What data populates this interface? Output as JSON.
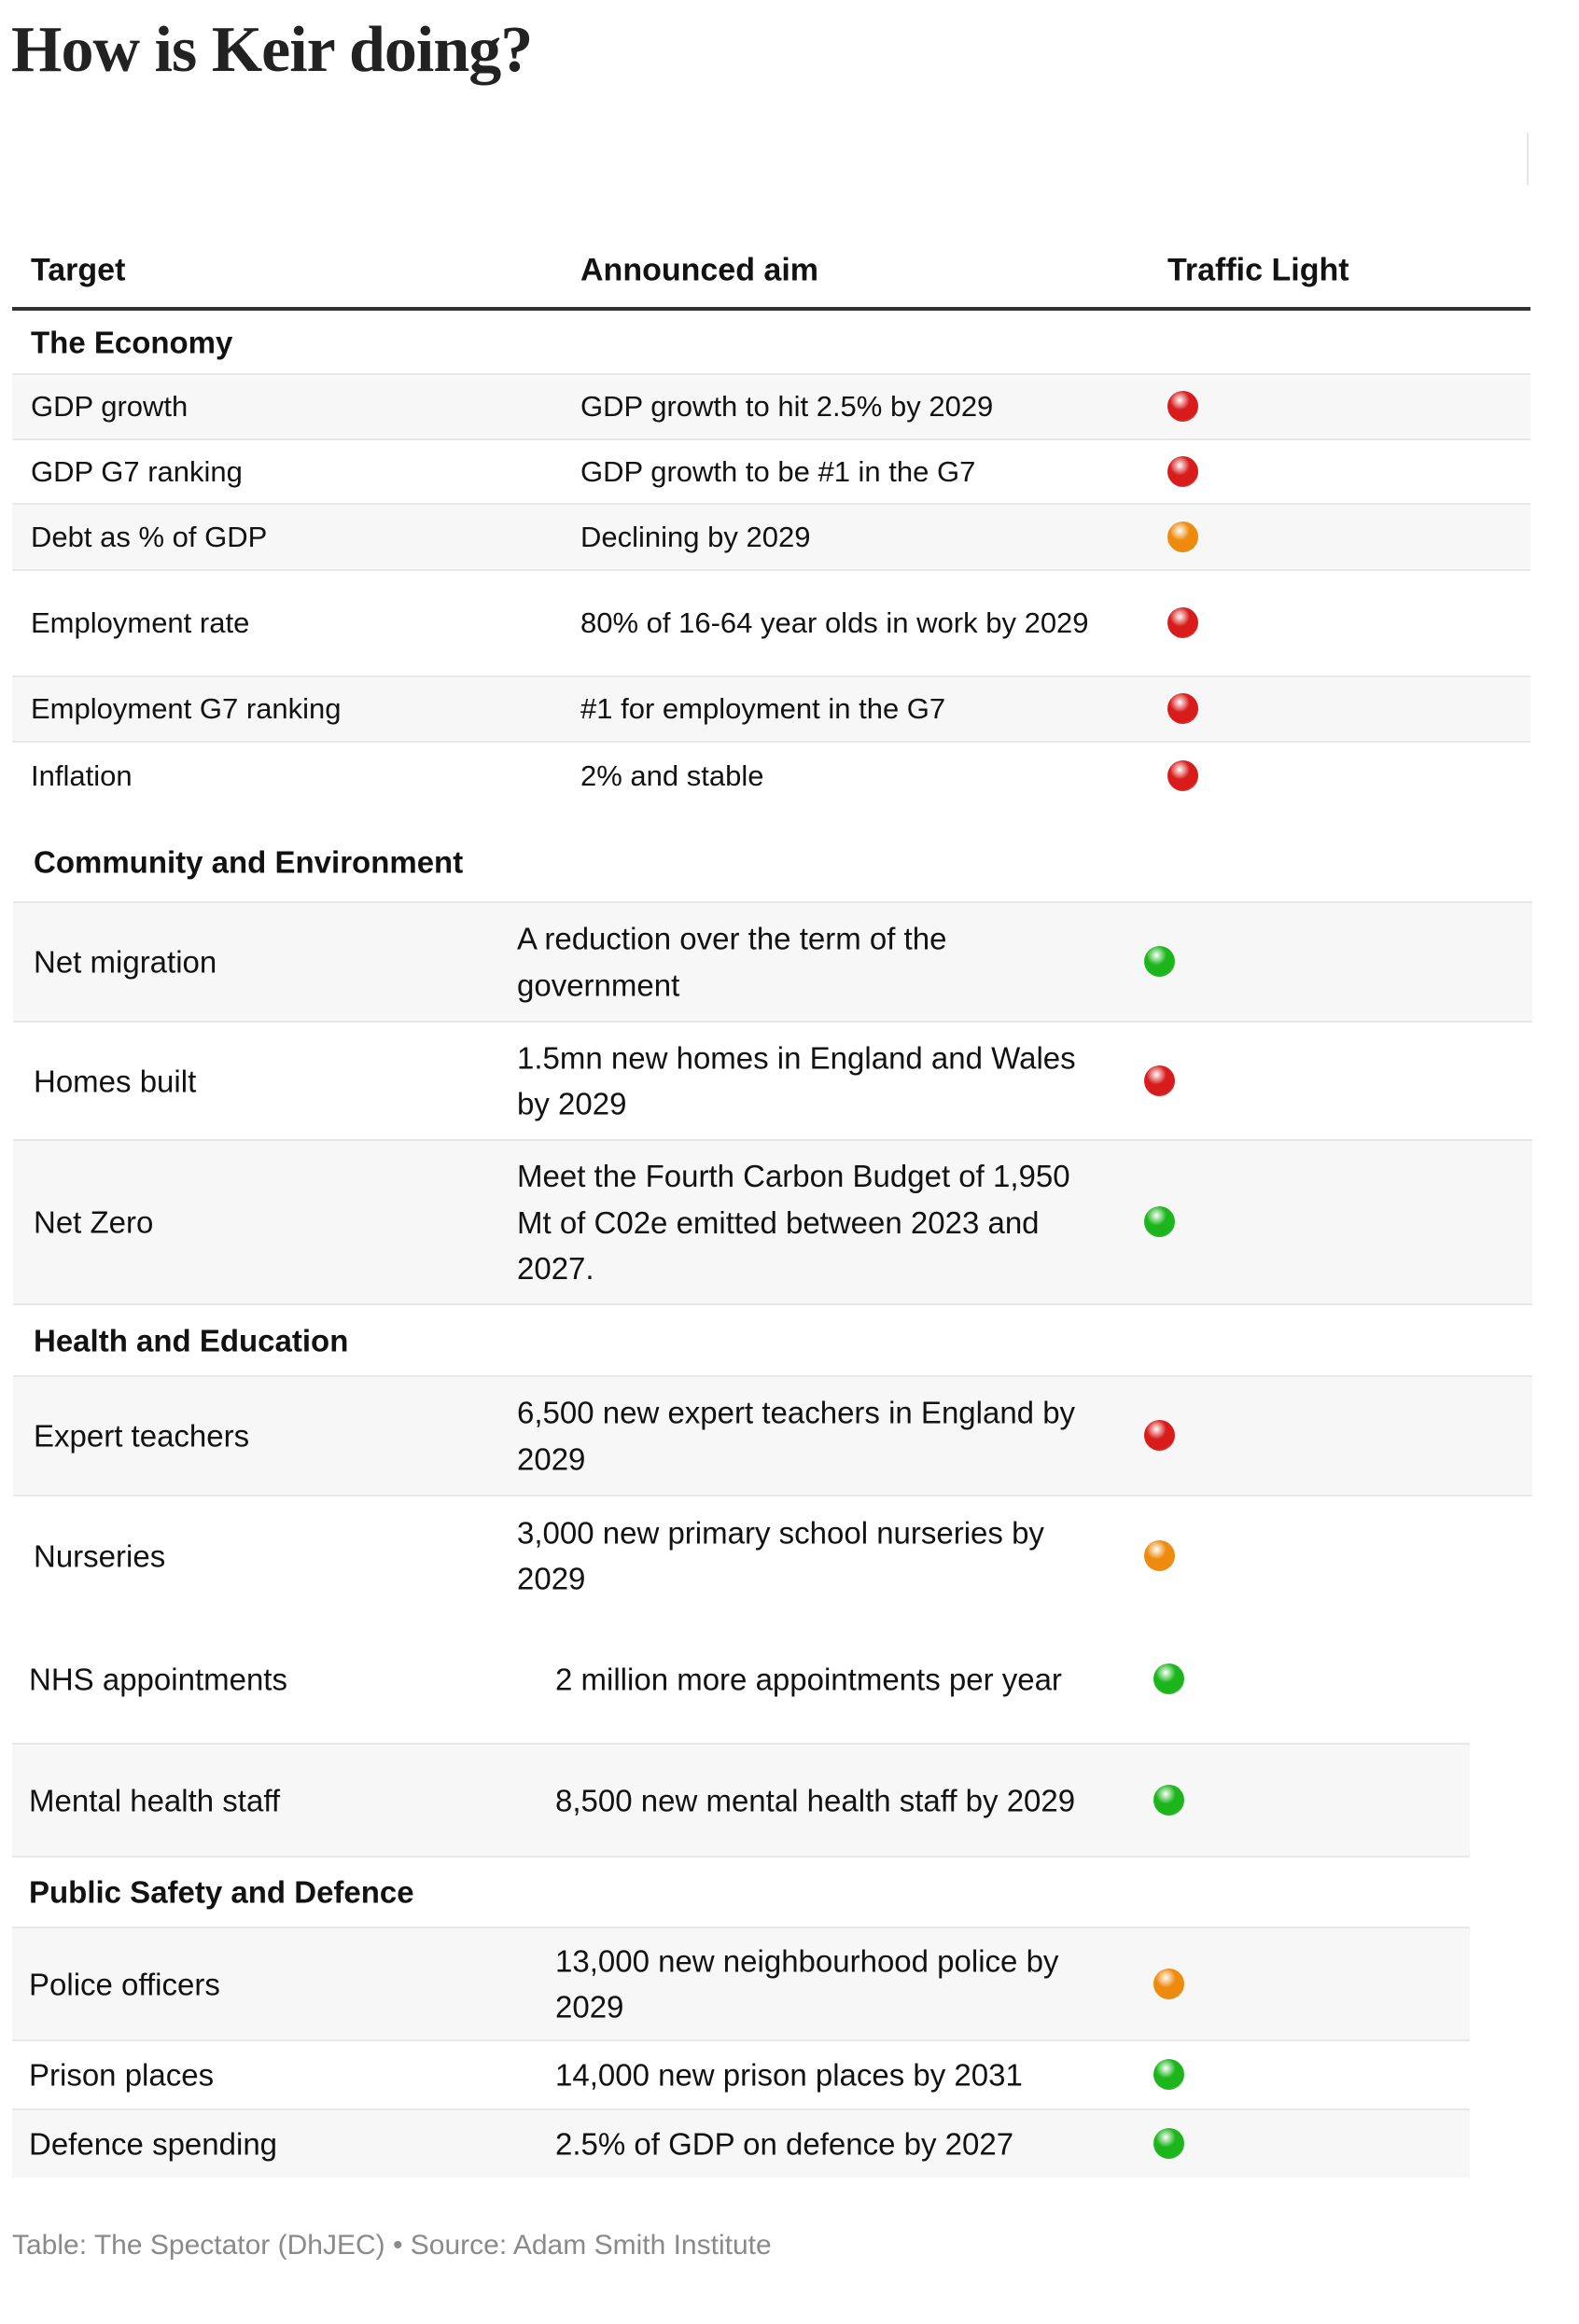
{
  "title": "How is Keir doing?",
  "columns": {
    "target": "Target",
    "aim": "Announced aim",
    "light": "Traffic Light"
  },
  "light_colors": {
    "red": "#d81c1c",
    "amber": "#ee8a0c",
    "green": "#1cb61c"
  },
  "sections": [
    {
      "heading": "The Economy",
      "rows": [
        {
          "target": "GDP growth",
          "aim": "GDP growth to hit 2.5% by 2029",
          "light": "red"
        },
        {
          "target": "GDP G7 ranking",
          "aim": "GDP growth to be #1 in the G7",
          "light": "red"
        },
        {
          "target": "Debt as % of GDP",
          "aim": "Declining by 2029",
          "light": "amber"
        },
        {
          "target": "Employment rate",
          "aim": "80% of 16-64 year olds in work by 2029",
          "light": "red"
        },
        {
          "target": "Employment G7 ranking",
          "aim": "#1 for employment in the G7",
          "light": "red"
        },
        {
          "target": "Inflation",
          "aim": "2% and stable",
          "light": "red"
        }
      ]
    },
    {
      "heading": "Community and Environment",
      "rows": [
        {
          "target": "Net migration",
          "aim": "A reduction over the term of the government",
          "light": "green"
        },
        {
          "target": "Homes built",
          "aim": "1.5mn new homes in England and Wales by 2029",
          "light": "red"
        },
        {
          "target": "Net Zero",
          "aim": "Meet the Fourth Carbon Budget of 1,950 Mt of C02e emitted between 2023 and 2027.",
          "light": "green"
        }
      ]
    },
    {
      "heading": "Health and Education",
      "rows": [
        {
          "target": "Expert teachers",
          "aim": "6,500 new expert teachers in England by 2029",
          "light": "red"
        },
        {
          "target": "Nurseries",
          "aim": "3,000 new primary school nurseries by 2029",
          "light": "amber"
        },
        {
          "target": "NHS appointments",
          "aim": "2 million more appointments per year",
          "light": "green"
        },
        {
          "target": "Mental health staff",
          "aim": "8,500 new mental health staff by 2029",
          "light": "green"
        }
      ]
    },
    {
      "heading": "Public Safety and Defence",
      "rows": [
        {
          "target": "Police officers",
          "aim": "13,000 new neighbourhood police by 2029",
          "light": "amber"
        },
        {
          "target": "Prison places",
          "aim": "14,000 new prison places by 2031",
          "light": "green"
        },
        {
          "target": "Defence spending",
          "aim": "2.5% of GDP on defence by 2027",
          "light": "green"
        }
      ]
    }
  ],
  "footer": "Table: The Spectator (DhJEC) • Source: Adam Smith Institute"
}
